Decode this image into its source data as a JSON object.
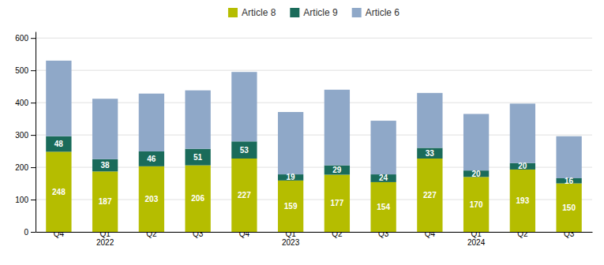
{
  "chart_data": {
    "type": "bar",
    "stacked": true,
    "categories": [
      "Q4",
      "Q1\n2022",
      "Q2",
      "Q3",
      "Q4",
      "Q1\n2023",
      "Q2",
      "Q3",
      "Q4",
      "Q1\n2024",
      "Q2",
      "Q3"
    ],
    "series": [
      {
        "name": "Article 8",
        "color": "#b5bd00",
        "values": [
          248,
          187,
          203,
          206,
          227,
          159,
          177,
          154,
          227,
          170,
          193,
          150
        ],
        "data_labels": true
      },
      {
        "name": "Article 9",
        "color": "#1a6b5a",
        "values": [
          48,
          38,
          46,
          51,
          53,
          19,
          29,
          24,
          33,
          20,
          20,
          16
        ],
        "data_labels": true
      },
      {
        "name": "Article 6",
        "color": "#8fa8c8",
        "values": [
          234,
          187,
          179,
          181,
          215,
          193,
          234,
          166,
          170,
          175,
          184,
          130
        ]
      }
    ],
    "ylim": [
      0,
      620
    ],
    "yticks": [
      0,
      100,
      200,
      300,
      400,
      500,
      600
    ],
    "grid": true,
    "legend": "top"
  }
}
